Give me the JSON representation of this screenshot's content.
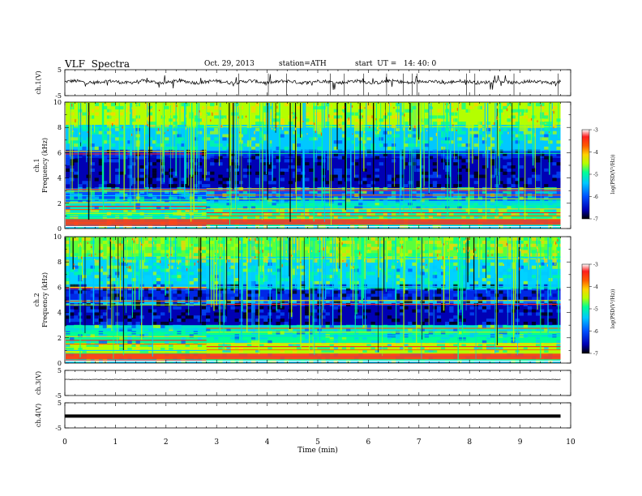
{
  "header": {
    "title": "VLF  Spectra",
    "date": "Oct. 29, 2013",
    "station": "station=ATH",
    "start": "start  UT =   14: 40: 0"
  },
  "chart_data": [
    {
      "type": "line",
      "name": "ch1-waveform",
      "ylabel": "ch.1(V)",
      "ylim": [
        -5,
        5
      ],
      "yticks": [
        "5",
        "-5"
      ],
      "xlim": [
        0,
        10
      ]
    },
    {
      "type": "heatmap",
      "name": "ch1-spectrogram",
      "ylabel_top": "ch.1",
      "ylabel": "Frequency  (kHz)",
      "ylim": [
        0,
        10
      ],
      "yticks": [
        "0",
        "2",
        "4",
        "6",
        "8",
        "10"
      ],
      "xlim": [
        0,
        10
      ],
      "colorbar": {
        "label": "log(PSD(V²/Hz))",
        "ticks": [
          "-3",
          "-4",
          "-5",
          "-6",
          "-7"
        ],
        "range": [
          -7,
          -3
        ]
      }
    },
    {
      "type": "heatmap",
      "name": "ch2-spectrogram",
      "ylabel_top": "ch.2",
      "ylabel": "Frequency  (kHz)",
      "ylim": [
        0,
        10
      ],
      "yticks": [
        "0",
        "2",
        "4",
        "6",
        "8",
        "10"
      ],
      "xlim": [
        0,
        10
      ],
      "colorbar": {
        "label": "log(PSD(V²/Hz))",
        "ticks": [
          "-3",
          "-4",
          "-5",
          "-6",
          "-7"
        ],
        "range": [
          -7,
          -3
        ]
      }
    },
    {
      "type": "line",
      "name": "ch3-waveform",
      "ylabel": "ch.3(V)",
      "ylim": [
        -5,
        5
      ],
      "yticks": [
        "5",
        "-5"
      ],
      "xlim": [
        0,
        10
      ]
    },
    {
      "type": "line",
      "name": "ch4-waveform",
      "ylabel": "ch.4(V)",
      "ylim": [
        -5,
        5
      ],
      "yticks": [
        "5",
        "-5"
      ],
      "xlim": [
        0,
        10
      ]
    }
  ],
  "xaxis": {
    "label": "Time  (min)",
    "ticks": [
      "0",
      "1",
      "2",
      "3",
      "4",
      "5",
      "6",
      "7",
      "8",
      "9",
      "10"
    ]
  },
  "colors": {
    "colormap": [
      "#000000",
      "#0000b4",
      "#0050ff",
      "#00c8ff",
      "#00ff96",
      "#b4ff00",
      "#ffd200",
      "#ff5a00",
      "#ff1e1e",
      "#ffffff"
    ]
  }
}
